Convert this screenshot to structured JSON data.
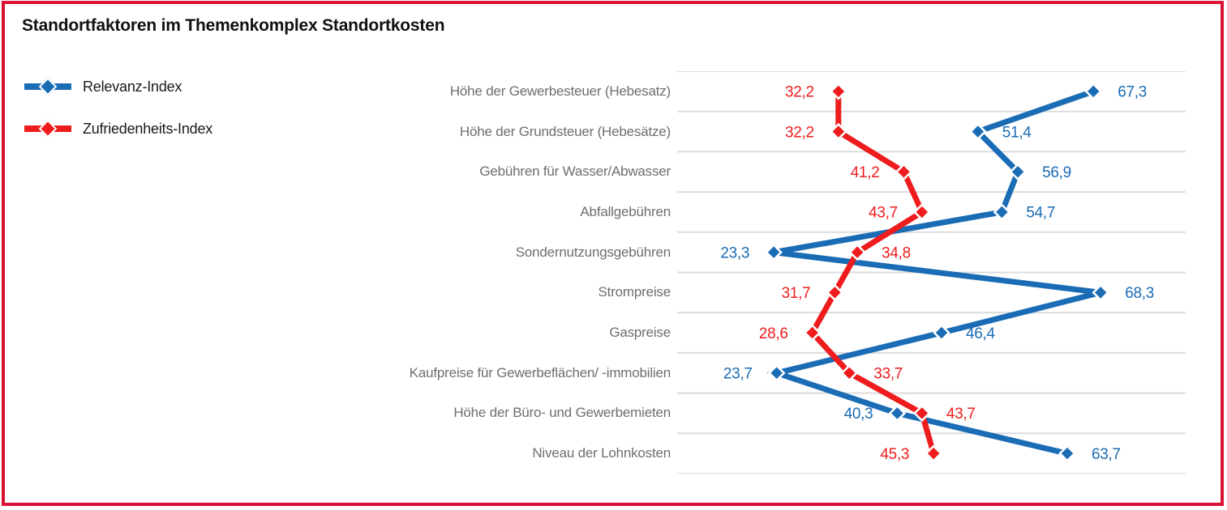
{
  "title": "Standortfaktoren im Themenkomplex Standortkosten",
  "colors": {
    "border_red": "#da1334",
    "grid": "#dcdcdc",
    "category_label": "#6e6e6e",
    "title_text": "#111111",
    "series_blue": "#1a6cb5",
    "series_red": "#ee1c1c"
  },
  "legend": {
    "items": [
      {
        "label": "Relevanz-Index",
        "color": "#1a6cb5",
        "marker": "diamond-line-icon"
      },
      {
        "label": "Zufriedenheits-Index",
        "color": "#ee1c1c",
        "marker": "diamond-line-icon"
      }
    ]
  },
  "chart_data": {
    "type": "line",
    "title": "Standortfaktoren im Themenkomplex Standortkosten",
    "orientation": "horizontal-categories-vertical-zigzag",
    "categories": [
      "Höhe der Gewerbesteuer (Hebesatz)",
      "Höhe der Grundsteuer (Hebesätze)",
      "Gebühren für Wasser/Abwasser",
      "Abfallgebühren",
      "Sondernutzungsgebühren",
      "Strompreise",
      "Gaspreise",
      "Kaufpreise für Gewerbeflächen/ -immobilien",
      "Höhe der Büro- und Gewerbemieten",
      "Niveau der Lohnkosten"
    ],
    "series": [
      {
        "name": "Relevanz-Index",
        "color": "#1a6cb5",
        "values": [
          67.3,
          51.4,
          56.9,
          54.7,
          23.3,
          68.3,
          46.4,
          23.7,
          40.3,
          63.7
        ],
        "labels": [
          "67,3",
          "51,4",
          "56,9",
          "54,7",
          "23,3",
          "68,3",
          "46,4",
          "23,7",
          "40,3",
          "63,7"
        ]
      },
      {
        "name": "Zufriedenheits-Index",
        "color": "#ee1c1c",
        "values": [
          32.2,
          32.2,
          41.2,
          43.7,
          34.8,
          31.7,
          28.6,
          33.7,
          43.7,
          45.3
        ],
        "labels": [
          "32,2",
          "32,2",
          "41,2",
          "43,7",
          "34,8",
          "31,7",
          "28,6",
          "33,7",
          "43,7",
          "45,3"
        ]
      }
    ],
    "xlim": [
      10,
      80
    ],
    "xlabel": "",
    "ylabel": "",
    "grid": true,
    "gridlines": "horizontal, one per category row boundary",
    "legend_position": "top-left",
    "value_label_rule": "smaller value labeled left of its marker, larger value labeled right"
  }
}
